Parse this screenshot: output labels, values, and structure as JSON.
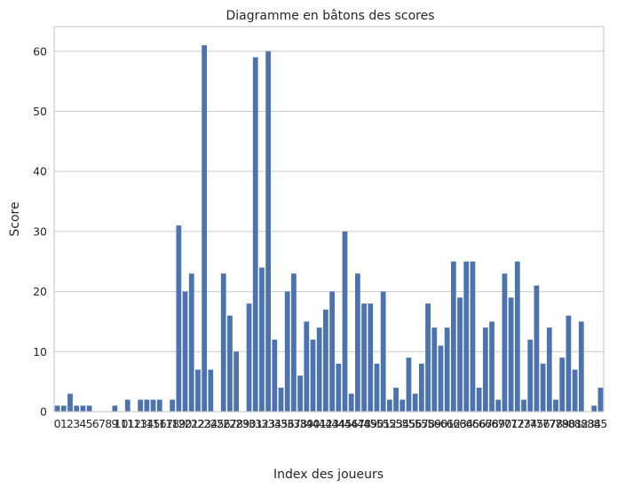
{
  "chart_data": {
    "type": "bar",
    "title": "Diagramme en bâtons des scores",
    "xlabel": "Index des joueurs",
    "ylabel": "Score",
    "ylim": [
      0,
      64.1
    ],
    "yticks": [
      0,
      10,
      20,
      30,
      40,
      50,
      60
    ],
    "grid": "horizontal",
    "bar_color": "#4c72b0",
    "categories": [
      "0",
      "1",
      "2",
      "3",
      "4",
      "5",
      "6",
      "7",
      "8",
      "9",
      "10",
      "11",
      "12",
      "13",
      "14",
      "15",
      "16",
      "17",
      "18",
      "19",
      "20",
      "21",
      "22",
      "23",
      "24",
      "25",
      "26",
      "27",
      "28",
      "29",
      "30",
      "31",
      "32",
      "33",
      "34",
      "35",
      "36",
      "37",
      "38",
      "39",
      "40",
      "41",
      "42",
      "43",
      "44",
      "45",
      "46",
      "47",
      "48",
      "49",
      "50",
      "51",
      "52",
      "53",
      "54",
      "55",
      "56",
      "57",
      "58",
      "59",
      "60",
      "61",
      "62",
      "63",
      "64",
      "65",
      "66",
      "67",
      "68",
      "69",
      "70",
      "71",
      "72",
      "73",
      "74",
      "75",
      "76",
      "77",
      "78",
      "79",
      "80",
      "81",
      "82",
      "83",
      "84",
      "85"
    ],
    "values": [
      1,
      1,
      3,
      1,
      1,
      1,
      0,
      0,
      0,
      1,
      0,
      2,
      0,
      2,
      2,
      2,
      2,
      0,
      2,
      31,
      20,
      23,
      7,
      61,
      7,
      0,
      23,
      16,
      10,
      0,
      18,
      59,
      24,
      60,
      12,
      4,
      20,
      23,
      6,
      15,
      12,
      14,
      17,
      20,
      8,
      30,
      3,
      23,
      18,
      18,
      8,
      20,
      2,
      4,
      2,
      9,
      3,
      8,
      18,
      14,
      11,
      14,
      25,
      19,
      25,
      25,
      4,
      14,
      15,
      2,
      23,
      19,
      25,
      2,
      12,
      21,
      8,
      14,
      2,
      9,
      16,
      7,
      15,
      0,
      1,
      4
    ]
  }
}
